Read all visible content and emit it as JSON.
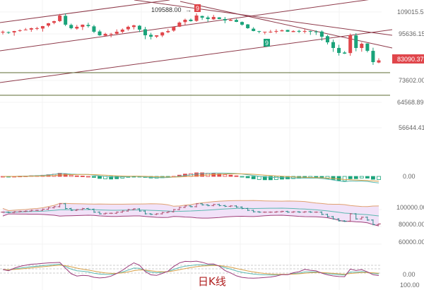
{
  "chart_data": {
    "type": "candlestick",
    "title": "",
    "period_label": "日K线",
    "up_color": "#e0464b",
    "down_color": "#1aa37a",
    "closes": [
      96947,
      96516,
      97378,
      97809,
      98240,
      99102,
      99102,
      100395,
      102119,
      103412,
      106860,
      101257,
      99102,
      99964,
      101257,
      100395,
      96947,
      94968,
      95636,
      95636,
      96947,
      98240,
      99964,
      100826,
      98240,
      94968,
      94300,
      94968,
      96516,
      97378,
      99964,
      102550,
      104274,
      103412,
      106860,
      105567,
      104705,
      105998,
      104705,
      103843,
      104274,
      102981,
      101257,
      99102,
      97378,
      96947,
      96947,
      96947,
      97378,
      97809,
      96947,
      97378,
      96947,
      97378,
      96947,
      96947,
      94300,
      91628,
      88956,
      86618,
      86284,
      94968,
      88956,
      90960,
      87620,
      82276,
      83090
    ],
    "price_axis_labels": [
      "109015.53",
      "95636.15",
      "83090.37",
      "73602.00",
      "64568.89",
      "56644.41"
    ],
    "last_price": "83090.37",
    "high_marker": {
      "label": "109588.00",
      "arrow": "→",
      "badge": "9"
    },
    "low_marker": {
      "badge": "9"
    },
    "macd_axis_labels": [
      "0.00"
    ],
    "boll_axis_labels": [
      "100000.00",
      "80000.00",
      "60000.00"
    ],
    "kdj_axis_labels": [
      "0.00",
      "100.00"
    ],
    "horizontal_levels": [
      76500,
      68500
    ],
    "colors": {
      "trendline": "#8e3a4a",
      "level": "#5c6b33",
      "badge_up": "#e0464b",
      "badge_down": "#1aa37a"
    }
  }
}
